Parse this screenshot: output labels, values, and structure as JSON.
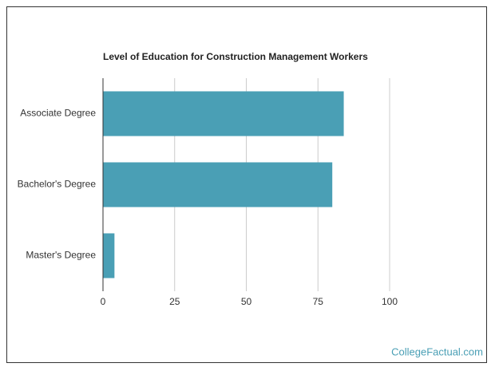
{
  "chart_data": {
    "type": "hbar",
    "title": "Level of Education for Construction Management Workers",
    "categories": [
      "Associate Degree",
      "Bachelor's Degree",
      "Master's Degree"
    ],
    "values": [
      84,
      80,
      4
    ],
    "color": "#4a9fb5",
    "xlim": [
      0,
      100
    ],
    "xticks": [
      0,
      25,
      50,
      75,
      100
    ],
    "grid": true
  },
  "footer": {
    "watermark": "CollegeFactual.com"
  }
}
